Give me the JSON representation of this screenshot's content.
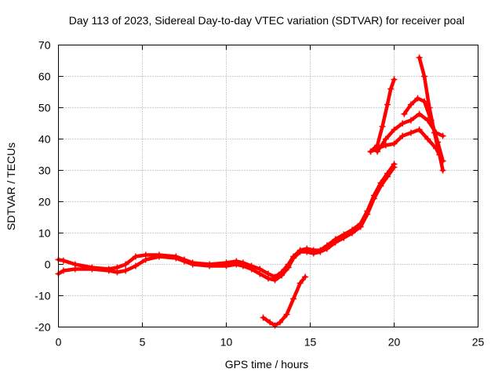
{
  "chart_data": {
    "type": "scatter",
    "title": "Day 113 of 2023, Sidereal Day-to-day VTEC variation (SDTVAR) for receiver poal",
    "xlabel": "GPS time / hours",
    "ylabel": "SDTVAR / TECUs",
    "xlim": [
      0,
      25
    ],
    "ylim": [
      -20,
      70
    ],
    "xticks": [
      0,
      5,
      10,
      15,
      20,
      25
    ],
    "yticks": [
      -20,
      -10,
      0,
      10,
      20,
      30,
      40,
      50,
      60,
      70
    ],
    "xtick_labels": [
      "0",
      "5",
      "10",
      "15",
      "20",
      "25"
    ],
    "ytick_labels": [
      "-20",
      "-10",
      "0",
      "10",
      "20",
      "30",
      "40",
      "50",
      "60",
      "70"
    ],
    "grid": true,
    "marker": "+",
    "color": "#ff0000",
    "series": [
      {
        "name": "track-main-upper",
        "x": [
          0.0,
          0.3,
          1.0,
          2.0,
          3.0,
          3.5,
          4.0,
          4.6,
          5.2,
          6.0,
          7.0,
          7.5,
          8.0,
          9.0,
          10.0,
          10.6,
          11.0,
          11.5,
          12.0,
          12.5,
          12.9,
          13.3,
          13.7,
          14.0,
          14.4,
          14.8,
          15.2,
          15.6,
          16.0,
          16.5,
          17.0,
          17.5,
          18.0,
          18.4,
          18.8,
          19.2,
          19.6,
          20.0
        ],
        "y": [
          1.5,
          1.2,
          0.0,
          -1.0,
          -1.5,
          -1.0,
          0.0,
          2.5,
          3.0,
          3.0,
          2.5,
          1.5,
          0.5,
          0.0,
          0.5,
          1.0,
          0.5,
          -0.5,
          -1.5,
          -3.0,
          -4.0,
          -2.5,
          0.0,
          2.5,
          4.5,
          5.0,
          4.5,
          4.5,
          6.0,
          8.0,
          9.5,
          11.0,
          13.0,
          17.0,
          22.0,
          26.0,
          29.0,
          32.0
        ]
      },
      {
        "name": "track-main-lower",
        "x": [
          0.0,
          0.3,
          1.0,
          2.0,
          3.0,
          3.5,
          4.0,
          4.6,
          5.2,
          6.0,
          7.0,
          7.5,
          8.0,
          9.0,
          10.0,
          10.6,
          11.0,
          11.5,
          12.0,
          12.5,
          12.9,
          13.3,
          13.7,
          14.0,
          14.4,
          14.8,
          15.2,
          15.6,
          16.0,
          16.5,
          17.0,
          17.5,
          18.0,
          18.4,
          18.8,
          19.2,
          19.6,
          20.0
        ],
        "y": [
          -3.0,
          -2.0,
          -1.5,
          -1.5,
          -2.0,
          -2.5,
          -2.0,
          -0.5,
          1.5,
          2.5,
          2.0,
          1.0,
          0.0,
          -0.5,
          -0.5,
          0.0,
          -0.5,
          -1.5,
          -3.0,
          -4.5,
          -5.0,
          -3.5,
          -1.0,
          2.0,
          4.0,
          4.0,
          3.5,
          4.0,
          5.0,
          7.0,
          8.5,
          10.0,
          12.0,
          16.0,
          21.0,
          25.0,
          28.0,
          31.0
        ]
      },
      {
        "name": "track-dip-arc",
        "x": [
          12.2,
          12.6,
          12.9,
          13.2,
          13.6,
          14.0,
          14.4,
          14.7
        ],
        "y": [
          -17.0,
          -18.5,
          -19.5,
          -18.5,
          -16.0,
          -11.0,
          -6.0,
          -4.0
        ]
      },
      {
        "name": "track-evening-rise",
        "x": [
          18.6,
          19.0,
          19.3,
          19.6,
          19.8,
          20.0
        ],
        "y": [
          36.0,
          38.0,
          44.0,
          51.0,
          56.0,
          59.0
        ]
      },
      {
        "name": "track-late-low",
        "x": [
          18.6,
          19.0,
          19.5,
          20.0,
          20.5,
          21.0,
          21.5,
          22.0,
          22.5,
          22.9
        ],
        "y": [
          36.0,
          37.0,
          38.0,
          38.5,
          41.0,
          42.0,
          43.0,
          40.0,
          37.0,
          33.0
        ]
      },
      {
        "name": "track-late-mid",
        "x": [
          19.0,
          19.5,
          20.0,
          20.5,
          21.0,
          21.5,
          22.0,
          22.5,
          22.9
        ],
        "y": [
          36.0,
          40.0,
          43.0,
          45.0,
          46.0,
          48.0,
          46.0,
          42.0,
          41.0
        ]
      },
      {
        "name": "track-late-high",
        "x": [
          20.6,
          21.0,
          21.4,
          21.8,
          22.2,
          22.6,
          22.9
        ],
        "y": [
          48.0,
          51.0,
          53.0,
          52.0,
          46.0,
          39.0,
          33.0
        ]
      },
      {
        "name": "track-late-drop",
        "x": [
          21.5,
          21.8,
          22.1,
          22.4,
          22.7,
          22.9
        ],
        "y": [
          66.0,
          60.0,
          50.0,
          42.0,
          35.0,
          30.0
        ]
      }
    ]
  }
}
